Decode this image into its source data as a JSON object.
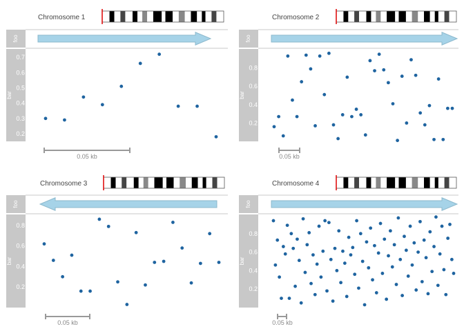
{
  "colors": {
    "panel_bg": "#c8c8c8",
    "arrow_fill": "#a6d3e8",
    "arrow_stroke": "#8cb8cc",
    "point": "#1f64a0",
    "ideogram_marker": "#dd0000",
    "scale_bar": "#999999"
  },
  "chart_data": [
    {
      "type": "scatter",
      "chromosome": "Chromosome 1",
      "tracks": [
        "foo",
        "bar"
      ],
      "strand": "forward",
      "ylim": [
        0.15,
        0.75
      ],
      "yticks": [
        "0.2",
        "0.3",
        "0.4",
        "0.5",
        "0.6",
        "0.7"
      ],
      "scale_label": "0.05 kb",
      "points": [
        {
          "x": 0.03,
          "y": 0.3
        },
        {
          "x": 0.14,
          "y": 0.29
        },
        {
          "x": 0.25,
          "y": 0.44
        },
        {
          "x": 0.36,
          "y": 0.39
        },
        {
          "x": 0.47,
          "y": 0.51
        },
        {
          "x": 0.58,
          "y": 0.66
        },
        {
          "x": 0.69,
          "y": 0.72
        },
        {
          "x": 0.8,
          "y": 0.38
        },
        {
          "x": 0.91,
          "y": 0.38
        },
        {
          "x": 1.02,
          "y": 0.18
        }
      ]
    },
    {
      "type": "scatter",
      "chromosome": "Chromosome 2",
      "tracks": [
        "foo",
        "bar"
      ],
      "strand": "forward",
      "ylim": [
        0.0,
        1.0
      ],
      "yticks": [
        "0.2",
        "0.4",
        "0.6",
        "0.8"
      ],
      "scale_label": "0.05 kb",
      "points": [
        {
          "x": 0.0,
          "y": 0.16
        },
        {
          "x": 0.023,
          "y": 0.27
        },
        {
          "x": 0.046,
          "y": 0.06
        },
        {
          "x": 0.069,
          "y": 0.93
        },
        {
          "x": 0.092,
          "y": 0.45
        },
        {
          "x": 0.115,
          "y": 0.27
        },
        {
          "x": 0.138,
          "y": 0.65
        },
        {
          "x": 0.161,
          "y": 0.94
        },
        {
          "x": 0.184,
          "y": 0.79
        },
        {
          "x": 0.207,
          "y": 0.17
        },
        {
          "x": 0.23,
          "y": 0.93
        },
        {
          "x": 0.253,
          "y": 0.51
        },
        {
          "x": 0.276,
          "y": 0.96
        },
        {
          "x": 0.299,
          "y": 0.18
        },
        {
          "x": 0.322,
          "y": 0.03
        },
        {
          "x": 0.345,
          "y": 0.29
        },
        {
          "x": 0.368,
          "y": 0.7
        },
        {
          "x": 0.391,
          "y": 0.27
        },
        {
          "x": 0.414,
          "y": 0.35
        },
        {
          "x": 0.437,
          "y": 0.29
        },
        {
          "x": 0.46,
          "y": 0.07
        },
        {
          "x": 0.483,
          "y": 0.88
        },
        {
          "x": 0.506,
          "y": 0.77
        },
        {
          "x": 0.529,
          "y": 0.95
        },
        {
          "x": 0.552,
          "y": 0.78
        },
        {
          "x": 0.575,
          "y": 0.64
        },
        {
          "x": 0.598,
          "y": 0.41
        },
        {
          "x": 0.621,
          "y": 0.01
        },
        {
          "x": 0.644,
          "y": 0.71
        },
        {
          "x": 0.667,
          "y": 0.2
        },
        {
          "x": 0.69,
          "y": 0.89
        },
        {
          "x": 0.713,
          "y": 0.72
        },
        {
          "x": 0.736,
          "y": 0.31
        },
        {
          "x": 0.759,
          "y": 0.18
        },
        {
          "x": 0.782,
          "y": 0.39
        },
        {
          "x": 0.805,
          "y": 0.02
        },
        {
          "x": 0.828,
          "y": 0.68
        },
        {
          "x": 0.851,
          "y": 0.02
        },
        {
          "x": 0.874,
          "y": 0.36
        },
        {
          "x": 0.897,
          "y": 0.36
        }
      ]
    },
    {
      "type": "scatter",
      "chromosome": "Chromosome 3",
      "tracks": [
        "foo",
        "bar"
      ],
      "strand": "reverse",
      "ylim": [
        0.0,
        0.9
      ],
      "yticks": [
        "0.2",
        "0.4",
        "0.6",
        "0.8"
      ],
      "scale_label": "0.05 kb",
      "points": [
        {
          "x": 0.01,
          "y": 0.62
        },
        {
          "x": 0.06,
          "y": 0.46
        },
        {
          "x": 0.11,
          "y": 0.3
        },
        {
          "x": 0.16,
          "y": 0.51
        },
        {
          "x": 0.21,
          "y": 0.16
        },
        {
          "x": 0.26,
          "y": 0.16
        },
        {
          "x": 0.31,
          "y": 0.86
        },
        {
          "x": 0.36,
          "y": 0.79
        },
        {
          "x": 0.41,
          "y": 0.25
        },
        {
          "x": 0.46,
          "y": 0.03
        },
        {
          "x": 0.51,
          "y": 0.73
        },
        {
          "x": 0.56,
          "y": 0.22
        },
        {
          "x": 0.61,
          "y": 0.44
        },
        {
          "x": 0.66,
          "y": 0.45
        },
        {
          "x": 0.71,
          "y": 0.83
        },
        {
          "x": 0.76,
          "y": 0.58
        },
        {
          "x": 0.81,
          "y": 0.24
        },
        {
          "x": 0.86,
          "y": 0.43
        },
        {
          "x": 0.91,
          "y": 0.72
        },
        {
          "x": 0.96,
          "y": 0.44
        }
      ]
    },
    {
      "type": "scatter",
      "chromosome": "Chromosome 4",
      "tracks": [
        "foo",
        "bar"
      ],
      "strand": "forward",
      "ylim": [
        0.0,
        1.0
      ],
      "yticks": [
        "0.2",
        "0.4",
        "0.6",
        "0.8"
      ],
      "scale_label": "0.05 kb",
      "points": [
        {
          "x": 0.0,
          "y": 0.94
        },
        {
          "x": 0.011,
          "y": 0.46
        },
        {
          "x": 0.022,
          "y": 0.73
        },
        {
          "x": 0.033,
          "y": 0.33
        },
        {
          "x": 0.044,
          "y": 0.1
        },
        {
          "x": 0.055,
          "y": 0.66
        },
        {
          "x": 0.066,
          "y": 0.58
        },
        {
          "x": 0.077,
          "y": 0.89
        },
        {
          "x": 0.088,
          "y": 0.1
        },
        {
          "x": 0.099,
          "y": 0.8
        },
        {
          "x": 0.11,
          "y": 0.64
        },
        {
          "x": 0.121,
          "y": 0.23
        },
        {
          "x": 0.132,
          "y": 0.74
        },
        {
          "x": 0.143,
          "y": 0.51
        },
        {
          "x": 0.154,
          "y": 0.05
        },
        {
          "x": 0.165,
          "y": 0.96
        },
        {
          "x": 0.176,
          "y": 0.38
        },
        {
          "x": 0.187,
          "y": 0.68
        },
        {
          "x": 0.198,
          "y": 0.81
        },
        {
          "x": 0.209,
          "y": 0.26
        },
        {
          "x": 0.22,
          "y": 0.57
        },
        {
          "x": 0.231,
          "y": 0.14
        },
        {
          "x": 0.242,
          "y": 0.47
        },
        {
          "x": 0.253,
          "y": 0.88
        },
        {
          "x": 0.264,
          "y": 0.33
        },
        {
          "x": 0.275,
          "y": 0.61
        },
        {
          "x": 0.286,
          "y": 0.94
        },
        {
          "x": 0.297,
          "y": 0.18
        },
        {
          "x": 0.308,
          "y": 0.92
        },
        {
          "x": 0.319,
          "y": 0.52
        },
        {
          "x": 0.33,
          "y": 0.07
        },
        {
          "x": 0.341,
          "y": 0.64
        },
        {
          "x": 0.352,
          "y": 0.4
        },
        {
          "x": 0.363,
          "y": 0.83
        },
        {
          "x": 0.374,
          "y": 0.27
        },
        {
          "x": 0.385,
          "y": 0.61
        },
        {
          "x": 0.396,
          "y": 0.48
        },
        {
          "x": 0.407,
          "y": 0.12
        },
        {
          "x": 0.418,
          "y": 0.76
        },
        {
          "x": 0.429,
          "y": 0.57
        },
        {
          "x": 0.44,
          "y": 0.65
        },
        {
          "x": 0.451,
          "y": 0.36
        },
        {
          "x": 0.462,
          "y": 0.94
        },
        {
          "x": 0.473,
          "y": 0.21
        },
        {
          "x": 0.484,
          "y": 0.8
        },
        {
          "x": 0.495,
          "y": 0.5
        },
        {
          "x": 0.506,
          "y": 0.03
        },
        {
          "x": 0.517,
          "y": 0.71
        },
        {
          "x": 0.528,
          "y": 0.43
        },
        {
          "x": 0.539,
          "y": 0.86
        },
        {
          "x": 0.55,
          "y": 0.3
        },
        {
          "x": 0.561,
          "y": 0.67
        },
        {
          "x": 0.572,
          "y": 0.16
        },
        {
          "x": 0.583,
          "y": 0.59
        },
        {
          "x": 0.594,
          "y": 0.91
        },
        {
          "x": 0.605,
          "y": 0.37
        },
        {
          "x": 0.616,
          "y": 0.74
        },
        {
          "x": 0.627,
          "y": 0.09
        },
        {
          "x": 0.638,
          "y": 0.56
        },
        {
          "x": 0.649,
          "y": 0.83
        },
        {
          "x": 0.66,
          "y": 0.44
        },
        {
          "x": 0.671,
          "y": 0.68
        },
        {
          "x": 0.682,
          "y": 0.25
        },
        {
          "x": 0.693,
          "y": 0.97
        },
        {
          "x": 0.704,
          "y": 0.52
        },
        {
          "x": 0.715,
          "y": 0.13
        },
        {
          "x": 0.726,
          "y": 0.77
        },
        {
          "x": 0.737,
          "y": 0.62
        },
        {
          "x": 0.748,
          "y": 0.34
        },
        {
          "x": 0.759,
          "y": 0.88
        },
        {
          "x": 0.77,
          "y": 0.46
        },
        {
          "x": 0.781,
          "y": 0.7
        },
        {
          "x": 0.792,
          "y": 0.19
        },
        {
          "x": 0.803,
          "y": 0.6
        },
        {
          "x": 0.814,
          "y": 0.93
        },
        {
          "x": 0.825,
          "y": 0.28
        },
        {
          "x": 0.836,
          "y": 0.73
        },
        {
          "x": 0.847,
          "y": 0.54
        },
        {
          "x": 0.858,
          "y": 0.15
        },
        {
          "x": 0.869,
          "y": 0.82
        },
        {
          "x": 0.88,
          "y": 0.39
        },
        {
          "x": 0.891,
          "y": 0.66
        },
        {
          "x": 0.902,
          "y": 0.98
        },
        {
          "x": 0.913,
          "y": 0.24
        },
        {
          "x": 0.924,
          "y": 0.58
        },
        {
          "x": 0.935,
          "y": 0.88
        },
        {
          "x": 0.946,
          "y": 0.41
        },
        {
          "x": 0.957,
          "y": 0.14
        },
        {
          "x": 0.968,
          "y": 0.75
        },
        {
          "x": 0.979,
          "y": 0.9
        },
        {
          "x": 0.99,
          "y": 0.52
        },
        {
          "x": 1.0,
          "y": 0.37
        }
      ]
    }
  ]
}
